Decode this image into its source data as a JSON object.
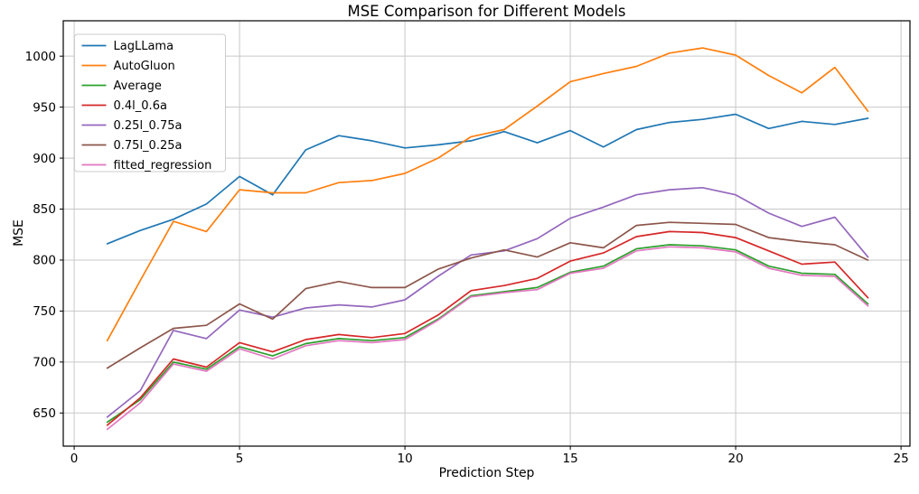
{
  "chart_data": {
    "type": "line",
    "title": "MSE Comparison for Different Models",
    "xlabel": "Prediction Step",
    "ylabel": "MSE",
    "x": [
      1,
      2,
      3,
      4,
      5,
      6,
      7,
      8,
      9,
      10,
      11,
      12,
      13,
      14,
      15,
      16,
      17,
      18,
      19,
      20,
      21,
      22,
      23,
      24
    ],
    "series": [
      {
        "name": "LagLLama",
        "color": "#1f77b4",
        "values": [
          816,
          829,
          840,
          855,
          882,
          864,
          908,
          922,
          917,
          910,
          913,
          917,
          926,
          915,
          927,
          911,
          928,
          935,
          938,
          943,
          929,
          936,
          933,
          939
        ]
      },
      {
        "name": "AutoGluon",
        "color": "#ff7f0e",
        "values": [
          721,
          780,
          838,
          828,
          869,
          866,
          866,
          876,
          878,
          885,
          900,
          921,
          928,
          951,
          975,
          983,
          990,
          1003,
          1008,
          1001,
          981,
          964,
          989,
          946
        ]
      },
      {
        "name": "Average",
        "color": "#2ca02c",
        "values": [
          641,
          663,
          700,
          693,
          715,
          706,
          718,
          723,
          721,
          724,
          742,
          765,
          769,
          773,
          788,
          794,
          811,
          815,
          814,
          810,
          794,
          787,
          786,
          757
        ]
      },
      {
        "name": "0.4l_0.6a",
        "color": "#d62728",
        "values": [
          638,
          665,
          703,
          695,
          719,
          710,
          722,
          727,
          724,
          728,
          746,
          770,
          775,
          782,
          799,
          807,
          823,
          828,
          827,
          822,
          809,
          796,
          798,
          763
        ]
      },
      {
        "name": "0.25l_0.75a",
        "color": "#9467bd",
        "values": [
          646,
          672,
          731,
          723,
          751,
          744,
          753,
          756,
          754,
          761,
          784,
          805,
          809,
          821,
          841,
          852,
          864,
          869,
          871,
          864,
          846,
          833,
          842,
          803
        ]
      },
      {
        "name": "0.75l_0.25a",
        "color": "#8c564b",
        "values": [
          694,
          714,
          733,
          736,
          757,
          742,
          772,
          779,
          773,
          773,
          791,
          802,
          810,
          803,
          817,
          812,
          834,
          837,
          836,
          835,
          822,
          818,
          815,
          800
        ]
      },
      {
        "name": "fitted_regression",
        "color": "#e377c2",
        "values": [
          634,
          660,
          698,
          691,
          713,
          703,
          716,
          721,
          719,
          722,
          741,
          764,
          768,
          771,
          787,
          792,
          809,
          813,
          812,
          808,
          792,
          785,
          784,
          755
        ]
      }
    ],
    "x_ticks": [
      0,
      5,
      10,
      15,
      20,
      25
    ],
    "y_ticks": [
      650,
      700,
      750,
      800,
      850,
      900,
      950,
      1000
    ],
    "xlim": [
      -0.33,
      25.27
    ],
    "ylim": [
      617.5,
      1034.7
    ],
    "grid": true,
    "legend_position": "upper-left",
    "colors": {
      "grid": "#c8c8c8",
      "spine": "#000000",
      "text": "#000000",
      "background": "#ffffff",
      "legend_border": "#cccccc"
    }
  }
}
